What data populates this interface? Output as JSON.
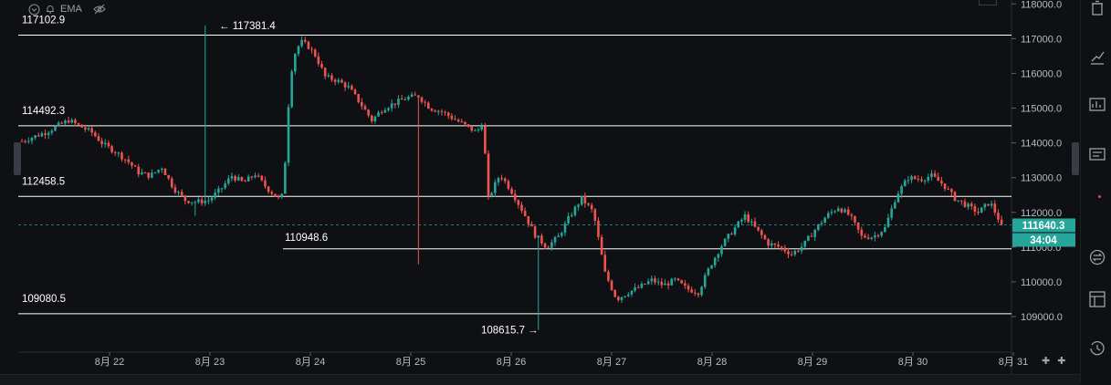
{
  "toolbar": {
    "indicator_label": "EMA"
  },
  "colors": {
    "up": "#26a69a",
    "down": "#ef5350",
    "line": "#ffffff",
    "price_tag": "#26a69a",
    "dashed": "#26a69a"
  },
  "chart_data": {
    "type": "candlestick",
    "y_range": [
      108500,
      118150
    ],
    "y_ticks": [
      109000,
      110000,
      111000,
      112000,
      113000,
      114000,
      115000,
      116000,
      117000,
      118000
    ],
    "y_tick_labels": [
      "109000.0",
      "110000.0",
      "111000.0",
      "112000.0",
      "113000.0",
      "114000.0",
      "115000.0",
      "116000.0",
      "117000.0",
      "118000.0"
    ],
    "x_labels": [
      "8月 22",
      "8月 23",
      "8月 24",
      "8月 25",
      "8月 26",
      "8月 27",
      "8月 28",
      "8月 29",
      "8月 30",
      "8月 31"
    ],
    "last_price": 111640.3,
    "last_price_label": "111640.3",
    "countdown_label": "34:04",
    "levels": [
      {
        "label": "117102.9",
        "value": 117102.9
      },
      {
        "label": "114492.3",
        "value": 114492.3
      },
      {
        "label": "112458.5",
        "value": 112458.5
      },
      {
        "label": "110948.6",
        "value": 110948.6
      },
      {
        "label": "109080.5",
        "value": 109080.5
      }
    ],
    "high_marker": {
      "label": "117381.4",
      "value": 117381.4
    },
    "low_marker": {
      "label": "108615.7",
      "value": 108615.7
    },
    "path": [
      [
        0,
        114050
      ],
      [
        2,
        114300
      ],
      [
        4,
        114650
      ],
      [
        6,
        114300
      ],
      [
        7,
        113950
      ],
      [
        8,
        113750
      ],
      [
        9,
        113500
      ],
      [
        10,
        113150
      ],
      [
        11,
        113050
      ],
      [
        12,
        113300
      ],
      [
        13,
        112700
      ],
      [
        14,
        112350
      ],
      [
        15,
        112300
      ],
      [
        16,
        112350
      ],
      [
        17,
        112650
      ],
      [
        18,
        113050
      ],
      [
        19,
        112850
      ],
      [
        20,
        113100
      ],
      [
        21,
        112700
      ],
      [
        22,
        112400
      ],
      [
        22.4,
        112500
      ],
      [
        23,
        115900
      ],
      [
        23.5,
        116700
      ],
      [
        24,
        116900
      ],
      [
        24.5,
        116800
      ],
      [
        25.2,
        116500
      ],
      [
        26,
        115900
      ],
      [
        27,
        115800
      ],
      [
        28,
        115600
      ],
      [
        29,
        115150
      ],
      [
        30,
        114650
      ],
      [
        31,
        115000
      ],
      [
        32,
        115150
      ],
      [
        33,
        115300
      ],
      [
        34,
        115350
      ],
      [
        35,
        115000
      ],
      [
        36,
        114900
      ],
      [
        37,
        114700
      ],
      [
        38,
        114500
      ],
      [
        39,
        114300
      ],
      [
        39.5,
        114600
      ],
      [
        40,
        112400
      ],
      [
        41,
        113100
      ],
      [
        42,
        112600
      ],
      [
        43,
        112000
      ],
      [
        44,
        111350
      ],
      [
        45,
        111000
      ],
      [
        46,
        111300
      ],
      [
        47,
        111900
      ],
      [
        48,
        112400
      ],
      [
        49,
        112000
      ],
      [
        50,
        110250
      ],
      [
        51,
        109500
      ],
      [
        52,
        109700
      ],
      [
        53,
        109850
      ],
      [
        54,
        110050
      ],
      [
        55,
        109900
      ],
      [
        56,
        110050
      ],
      [
        57,
        109800
      ],
      [
        58,
        109700
      ],
      [
        59,
        110450
      ],
      [
        60,
        111050
      ],
      [
        61,
        111500
      ],
      [
        62,
        111900
      ],
      [
        63,
        111500
      ],
      [
        64,
        111100
      ],
      [
        65,
        111000
      ],
      [
        66,
        110800
      ],
      [
        67,
        111050
      ],
      [
        68,
        111500
      ],
      [
        69,
        111900
      ],
      [
        70,
        112150
      ],
      [
        71,
        111900
      ],
      [
        72,
        111300
      ],
      [
        73,
        111300
      ],
      [
        74,
        111550
      ],
      [
        75,
        112500
      ],
      [
        76,
        113000
      ],
      [
        77,
        112950
      ],
      [
        78,
        113050
      ],
      [
        79,
        112800
      ],
      [
        80,
        112400
      ],
      [
        81,
        112200
      ],
      [
        82,
        112000
      ],
      [
        83,
        112300
      ],
      [
        84,
        111640
      ]
    ]
  }
}
